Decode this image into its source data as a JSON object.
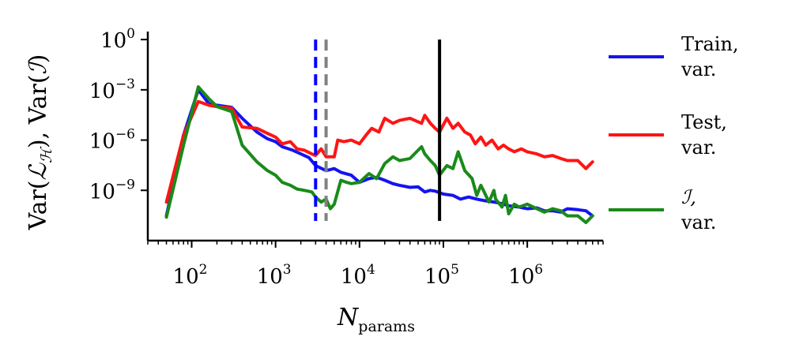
{
  "chart_data": {
    "type": "line",
    "xscale": "log",
    "yscale": "log",
    "xlim": [
      30,
      8000000
    ],
    "ylim": [
      1e-12,
      3
    ],
    "xlabel": {
      "base": "N",
      "subscript": "params"
    },
    "ylabel": {
      "part1_base": "Var(",
      "part1_script": "ℒ",
      "part1_sub": "ℋ",
      "part1_close": "),",
      "part2_base": "Var(",
      "part2_script": "ℐ",
      "part2_close": ")"
    },
    "xticks": [
      {
        "value": 100,
        "base": "10",
        "exp": "2"
      },
      {
        "value": 1000,
        "base": "10",
        "exp": "3"
      },
      {
        "value": 10000,
        "base": "10",
        "exp": "4"
      },
      {
        "value": 100000,
        "base": "10",
        "exp": "5"
      },
      {
        "value": 1000000,
        "base": "10",
        "exp": "6"
      }
    ],
    "yticks": [
      {
        "value": 1,
        "base": "10",
        "exp": "0"
      },
      {
        "value": 0.001,
        "base": "10",
        "exp": "−3"
      },
      {
        "value": 1e-06,
        "base": "10",
        "exp": "−6"
      },
      {
        "value": 1e-09,
        "base": "10",
        "exp": "−9"
      }
    ],
    "vlines": [
      {
        "name": "blue-dashed-line",
        "x": 3000,
        "color": "#0000ff",
        "style": "dashed"
      },
      {
        "name": "gray-dashed-line",
        "x": 4000,
        "color": "#808080",
        "style": "dashed"
      },
      {
        "name": "black-solid-line",
        "x": 90000,
        "color": "#000000",
        "style": "solid"
      }
    ],
    "series": [
      {
        "name": "train-variance",
        "label_line1": "Train,",
        "label_line2": "var.",
        "color": "#1414f0",
        "points": [
          [
            50,
            3e-11
          ],
          [
            80,
            2e-06
          ],
          [
            120,
            0.001
          ],
          [
            160,
            0.00015
          ],
          [
            200,
            0.00012
          ],
          [
            300,
            9e-05
          ],
          [
            400,
            2e-05
          ],
          [
            600,
            3e-06
          ],
          [
            800,
            1.2e-06
          ],
          [
            1000,
            8e-07
          ],
          [
            1200,
            4e-07
          ],
          [
            1600,
            2.5e-07
          ],
          [
            2000,
            1.5e-07
          ],
          [
            2500,
            9e-08
          ],
          [
            3000,
            3e-08
          ],
          [
            4000,
            1.5e-08
          ],
          [
            5000,
            2e-08
          ],
          [
            6000,
            1.2e-08
          ],
          [
            8000,
            8e-09
          ],
          [
            10000,
            3e-09
          ],
          [
            13000,
            5e-09
          ],
          [
            16000,
            6e-09
          ],
          [
            20000,
            4e-09
          ],
          [
            25000,
            2.5e-09
          ],
          [
            30000,
            2e-09
          ],
          [
            40000,
            1.5e-09
          ],
          [
            50000,
            1.6e-09
          ],
          [
            60000,
            8e-10
          ],
          [
            70000,
            1e-09
          ],
          [
            80000,
            9e-10
          ],
          [
            100000,
            6e-10
          ],
          [
            130000,
            5e-10
          ],
          [
            160000,
            3e-10
          ],
          [
            200000,
            4e-10
          ],
          [
            250000,
            3e-10
          ],
          [
            300000,
            2.5e-10
          ],
          [
            400000,
            2e-10
          ],
          [
            500000,
            1.6e-10
          ],
          [
            600000,
            1.2e-10
          ],
          [
            800000,
            1e-10
          ],
          [
            1000000,
            8e-11
          ],
          [
            1300000,
            9e-11
          ],
          [
            1600000,
            6e-11
          ],
          [
            2000000,
            6e-11
          ],
          [
            2500000,
            5e-11
          ],
          [
            3000000,
            8e-11
          ],
          [
            4000000,
            7e-11
          ],
          [
            5000000,
            6e-11
          ],
          [
            6000000,
            3e-11
          ]
        ]
      },
      {
        "name": "test-variance",
        "label_line1": "Test,",
        "label_line2": "var.",
        "color": "#ff1414",
        "points": [
          [
            50,
            2e-10
          ],
          [
            80,
            2e-06
          ],
          [
            120,
            0.0002
          ],
          [
            160,
            0.00012
          ],
          [
            200,
            0.0001
          ],
          [
            300,
            8e-05
          ],
          [
            400,
            6e-06
          ],
          [
            600,
            5e-06
          ],
          [
            800,
            2.5e-06
          ],
          [
            1000,
            1.5e-06
          ],
          [
            1200,
            6e-07
          ],
          [
            1500,
            8e-07
          ],
          [
            1800,
            3e-07
          ],
          [
            2200,
            2.5e-07
          ],
          [
            2700,
            1.5e-07
          ],
          [
            3000,
            1.2e-07
          ],
          [
            3500,
            3e-07
          ],
          [
            4000,
            1e-07
          ],
          [
            5000,
            1e-07
          ],
          [
            5500,
            1e-06
          ],
          [
            6500,
            8e-07
          ],
          [
            8000,
            1e-06
          ],
          [
            10000,
            6e-07
          ],
          [
            12000,
            2e-06
          ],
          [
            14000,
            5e-06
          ],
          [
            17000,
            3e-06
          ],
          [
            20000,
            2e-05
          ],
          [
            25000,
            1e-05
          ],
          [
            30000,
            1.5e-05
          ],
          [
            40000,
            2e-05
          ],
          [
            55000,
            1e-05
          ],
          [
            60000,
            3e-05
          ],
          [
            70000,
            1e-05
          ],
          [
            80000,
            5e-06
          ],
          [
            90000,
            3e-06
          ],
          [
            110000,
            2e-05
          ],
          [
            130000,
            5e-06
          ],
          [
            150000,
            1e-05
          ],
          [
            180000,
            3e-06
          ],
          [
            210000,
            2e-06
          ],
          [
            240000,
            6e-07
          ],
          [
            280000,
            1.5e-06
          ],
          [
            320000,
            5e-07
          ],
          [
            380000,
            1e-06
          ],
          [
            450000,
            3e-07
          ],
          [
            520000,
            5e-07
          ],
          [
            600000,
            3e-07
          ],
          [
            700000,
            2e-07
          ],
          [
            850000,
            3e-07
          ],
          [
            1000000,
            2e-07
          ],
          [
            1300000,
            1.5e-07
          ],
          [
            1600000,
            1e-07
          ],
          [
            2000000,
            1.2e-07
          ],
          [
            2500000,
            8e-08
          ],
          [
            3000000,
            6e-08
          ],
          [
            4000000,
            6e-08
          ],
          [
            5000000,
            2e-08
          ],
          [
            6000000,
            5e-08
          ]
        ]
      },
      {
        "name": "i-variance",
        "label_line1": "ℐ,",
        "label_line2": "var.",
        "color": "#1a8a1a",
        "points": [
          [
            50,
            2.5e-11
          ],
          [
            80,
            5e-07
          ],
          [
            120,
            0.0015
          ],
          [
            160,
            0.0003
          ],
          [
            200,
            0.0001
          ],
          [
            300,
            5e-05
          ],
          [
            400,
            5e-07
          ],
          [
            600,
            5e-08
          ],
          [
            800,
            1.5e-08
          ],
          [
            1000,
            8e-09
          ],
          [
            1200,
            3e-09
          ],
          [
            1500,
            2e-09
          ],
          [
            1800,
            1.2e-09
          ],
          [
            2200,
            1e-09
          ],
          [
            2700,
            8e-10
          ],
          [
            3000,
            4e-10
          ],
          [
            3500,
            2e-10
          ],
          [
            4000,
            3e-10
          ],
          [
            4500,
            8e-11
          ],
          [
            5000,
            1.5e-10
          ],
          [
            6000,
            4e-09
          ],
          [
            7000,
            3e-09
          ],
          [
            8000,
            2.5e-09
          ],
          [
            10000,
            3e-09
          ],
          [
            13000,
            1e-08
          ],
          [
            16000,
            5e-09
          ],
          [
            20000,
            4e-08
          ],
          [
            25000,
            1e-07
          ],
          [
            30000,
            6e-08
          ],
          [
            40000,
            8e-08
          ],
          [
            55000,
            4e-07
          ],
          [
            60000,
            1.5e-07
          ],
          [
            70000,
            6e-08
          ],
          [
            80000,
            3e-08
          ],
          [
            90000,
            8e-09
          ],
          [
            110000,
            3e-08
          ],
          [
            130000,
            2e-08
          ],
          [
            150000,
            2e-07
          ],
          [
            180000,
            1.5e-08
          ],
          [
            220000,
            5e-09
          ],
          [
            250000,
            5e-10
          ],
          [
            280000,
            2e-09
          ],
          [
            300000,
            1e-09
          ],
          [
            350000,
            2e-10
          ],
          [
            400000,
            1e-09
          ],
          [
            420000,
            3e-10
          ],
          [
            500000,
            1e-10
          ],
          [
            550000,
            5e-10
          ],
          [
            600000,
            4e-11
          ],
          [
            700000,
            1.5e-10
          ],
          [
            800000,
            1e-10
          ],
          [
            1000000,
            1.5e-10
          ],
          [
            1300000,
            8e-11
          ],
          [
            1600000,
            5e-11
          ],
          [
            2000000,
            8e-11
          ],
          [
            2500000,
            6e-11
          ],
          [
            3000000,
            3e-11
          ],
          [
            4000000,
            3e-11
          ],
          [
            5000000,
            1.2e-11
          ],
          [
            6000000,
            3e-11
          ]
        ]
      }
    ]
  }
}
